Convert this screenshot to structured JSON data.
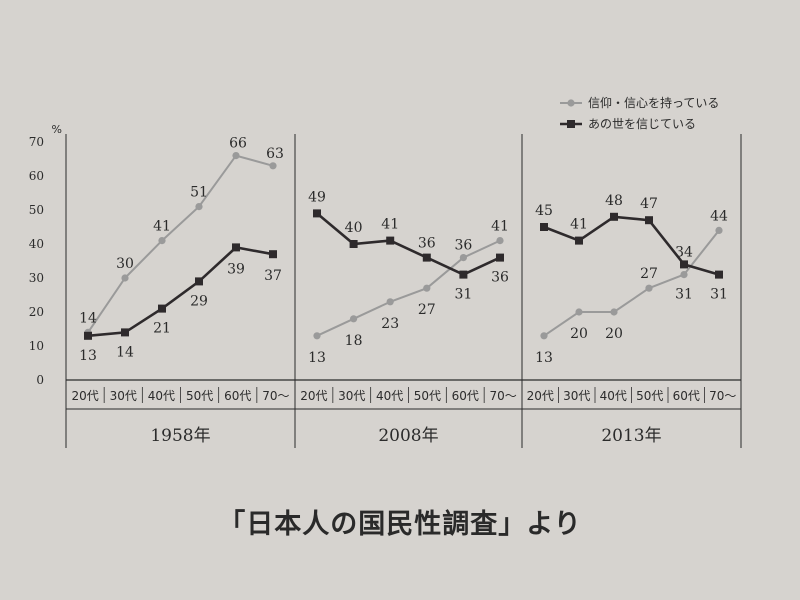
{
  "chart_data": {
    "type": "line",
    "y_unit": "%",
    "ylim": [
      0,
      70
    ],
    "yticks": [
      0,
      10,
      20,
      30,
      40,
      50,
      60,
      70
    ],
    "categories": [
      "20代",
      "30代",
      "40代",
      "50代",
      "60代",
      "70〜"
    ],
    "legend_position": "top-right",
    "series_meta": [
      {
        "name": "信仰・信心を持っている",
        "color": "#9a9a9a",
        "marker": "circle"
      },
      {
        "name": "あの世を信じている",
        "color": "#2e2a2c",
        "marker": "square"
      }
    ],
    "panels": [
      {
        "title": "1958年",
        "series": [
          {
            "name": "信仰・信心を持っている",
            "values": [
              14,
              30,
              41,
              51,
              66,
              63
            ]
          },
          {
            "name": "あの世を信じている",
            "values": [
              13,
              14,
              21,
              29,
              39,
              37
            ]
          }
        ]
      },
      {
        "title": "2008年",
        "series": [
          {
            "name": "信仰・信心を持っている",
            "values": [
              13,
              18,
              23,
              27,
              36,
              41
            ]
          },
          {
            "name": "あの世を信じている",
            "values": [
              49,
              40,
              41,
              36,
              31,
              36
            ]
          }
        ]
      },
      {
        "title": "2013年",
        "series": [
          {
            "name": "信仰・信心を持っている",
            "values": [
              13,
              20,
              20,
              27,
              31,
              44
            ]
          },
          {
            "name": "あの世を信じている",
            "values": [
              45,
              41,
              48,
              47,
              34,
              31
            ]
          }
        ]
      }
    ]
  },
  "source_caption": "「日本人の国民性調査」より"
}
